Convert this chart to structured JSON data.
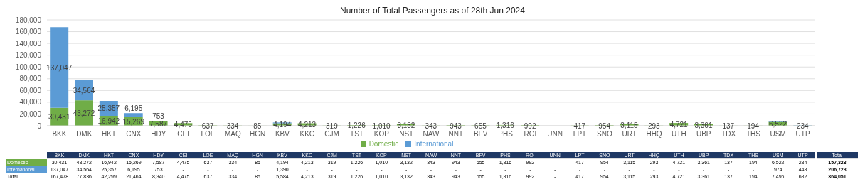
{
  "chart_data": {
    "type": "bar",
    "title": "Number of Total Passengers as of 28th Jun 2024",
    "stacked": true,
    "categories": [
      "BKK",
      "DMK",
      "HKT",
      "CNX",
      "HDY",
      "CEI",
      "LOE",
      "MAQ",
      "HGN",
      "KBV",
      "KKC",
      "CJM",
      "TST",
      "KOP",
      "NST",
      "NAW",
      "NNT",
      "BFV",
      "PHS",
      "ROI",
      "UNN",
      "LPT",
      "SNO",
      "URT",
      "HHQ",
      "UTH",
      "UBP",
      "TDX",
      "THS",
      "USM",
      "UTP"
    ],
    "series": [
      {
        "name": "Domestic",
        "color": "#70ad47",
        "values": [
          30431,
          43272,
          16942,
          15269,
          7587,
          4475,
          637,
          334,
          85,
          4194,
          4213,
          319,
          1226,
          1010,
          3132,
          343,
          943,
          655,
          1316,
          992,
          0,
          417,
          954,
          3115,
          293,
          4721,
          3361,
          137,
          194,
          6522,
          234
        ],
        "value_labels": [
          "30,431",
          "43,272",
          "16,942",
          "15,269",
          "7,587",
          "4,475",
          "637",
          "334",
          "85",
          "4,194",
          "4,213",
          "319",
          "1,226",
          "1,010",
          "3,132",
          "343",
          "943",
          "655",
          "1,316",
          "992",
          "-",
          "417",
          "954",
          "3,115",
          "293",
          "4,721",
          "3,361",
          "137",
          "194",
          "6,522",
          "234"
        ]
      },
      {
        "name": "International",
        "color": "#5b9bd5",
        "values": [
          137047,
          34564,
          25357,
          6195,
          753,
          0,
          0,
          0,
          0,
          1390,
          0,
          0,
          0,
          0,
          0,
          0,
          0,
          0,
          0,
          0,
          0,
          0,
          0,
          0,
          0,
          0,
          0,
          0,
          0,
          974,
          448
        ],
        "value_labels": [
          "137,047",
          "34,564",
          "25,357",
          "6,195",
          "753",
          "-",
          "-",
          "-",
          "-",
          "1,390",
          "-",
          "-",
          "-",
          "-",
          "-",
          "-",
          "-",
          "-",
          "-",
          "-",
          "-",
          "-",
          "-",
          "-",
          "-",
          "-",
          "-",
          "-",
          "-",
          "974",
          "448"
        ]
      }
    ],
    "annotations": [
      "Total",
      "157,323",
      "206,728",
      "364,051",
      "167,478",
      "77,836",
      "42,299",
      "21,464",
      "8,340",
      "4,475",
      "637",
      "334",
      "85",
      "5,584",
      "4,213",
      "319",
      "1,226",
      "1,010",
      "3,132",
      "343",
      "943",
      "655",
      "1,316",
      "992",
      "-",
      "417",
      "954",
      "3,115",
      "293",
      "4,721",
      "3,361",
      "137",
      "194",
      "7,496",
      "682"
    ],
    "ylim": [
      0,
      180000
    ],
    "yticks": [
      0,
      {
        "value": 20000,
        "label": "20,000"
      },
      {
        "value": 40000,
        "label": "40,000"
      },
      {
        "value": 60000,
        "label": "60,000"
      },
      {
        "value": 80000,
        "label": "80,000"
      },
      {
        "value": 100000,
        "label": "100,000"
      },
      {
        "value": 120000,
        "label": "120,000"
      },
      {
        "value": 140000,
        "label": "140,000"
      },
      {
        "value": 160000,
        "label": "160,000"
      },
      {
        "value": 180000,
        "label": "180,000"
      }
    ],
    "grid": "y",
    "legend": "bottom"
  }
}
